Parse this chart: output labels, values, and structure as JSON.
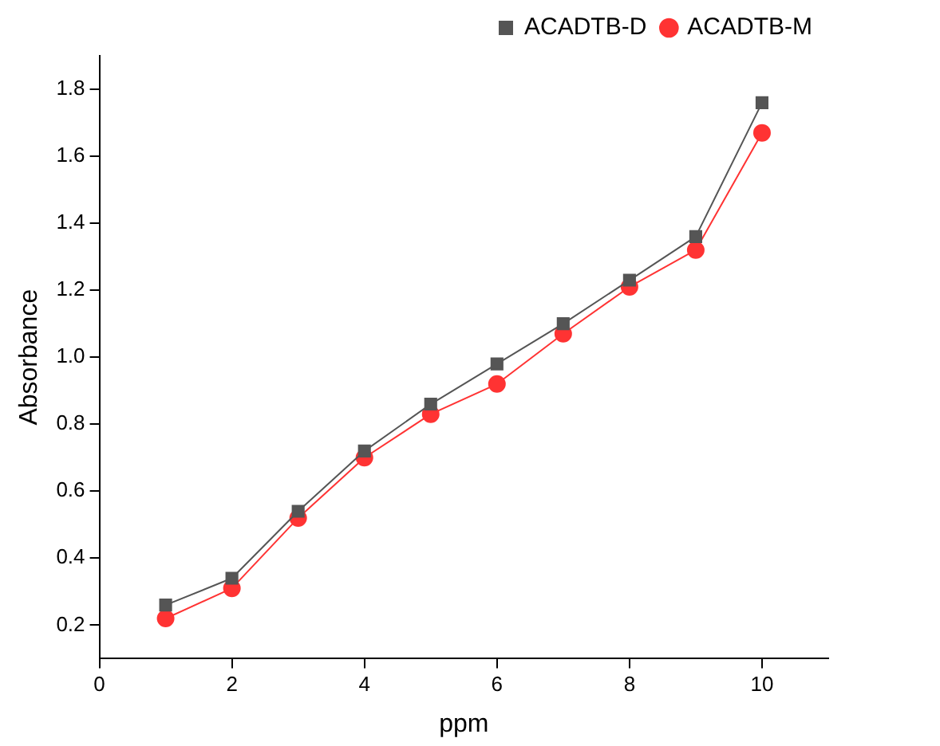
{
  "chart_data": {
    "type": "line",
    "xlabel": "ppm",
    "ylabel": "Absorbance",
    "x": [
      1,
      2,
      3,
      4,
      5,
      6,
      7,
      8,
      9,
      10
    ],
    "series": [
      {
        "name": "ACADTB-D",
        "color": "#555555",
        "marker": "square",
        "values": [
          0.26,
          0.34,
          0.54,
          0.72,
          0.86,
          0.98,
          1.1,
          1.23,
          1.36,
          1.76
        ]
      },
      {
        "name": "ACADTB-M",
        "color": "#ff3333",
        "marker": "circle",
        "values": [
          0.22,
          0.31,
          0.52,
          0.7,
          0.83,
          0.92,
          1.07,
          1.21,
          1.32,
          1.67
        ]
      }
    ],
    "xlim": [
      0,
      11
    ],
    "xticks": [
      0,
      2,
      4,
      6,
      8,
      10
    ],
    "ylim": [
      0.1,
      1.9
    ],
    "yticks": [
      0.2,
      0.4,
      0.6,
      0.8,
      {
        "value": 1,
        "label": "1.0"
      },
      1.2,
      1.4,
      1.6,
      1.8
    ],
    "grid": false,
    "legend": "top right",
    "line_style": "solid"
  }
}
